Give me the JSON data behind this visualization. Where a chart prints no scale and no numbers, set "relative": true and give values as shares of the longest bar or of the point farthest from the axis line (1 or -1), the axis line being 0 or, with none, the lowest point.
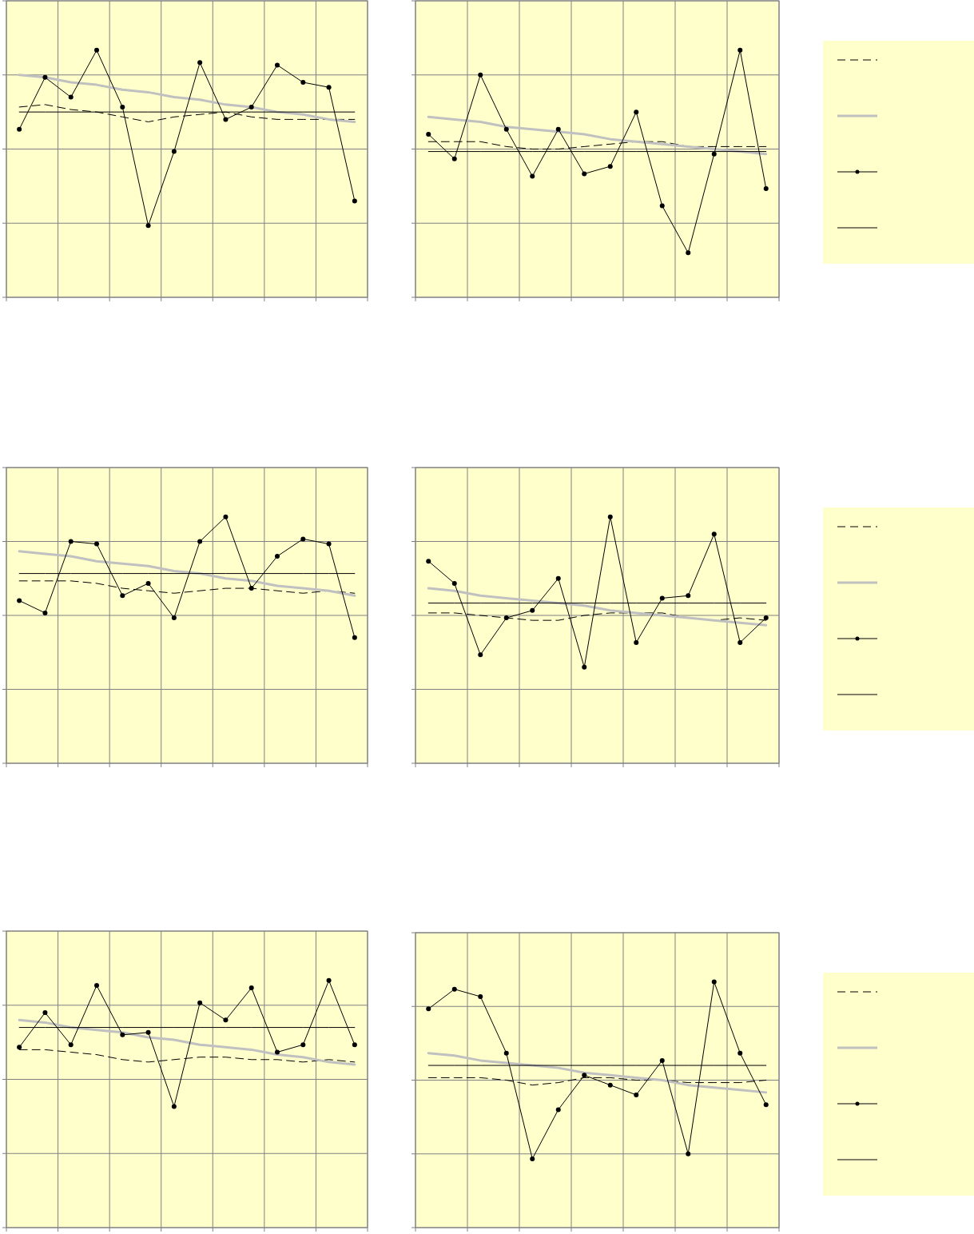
{
  "chart_data": [
    {
      "type": "line",
      "relative": true,
      "grid": true,
      "categories": [
        null,
        null,
        null,
        null,
        null,
        null,
        null,
        null,
        null,
        null,
        null,
        null,
        null,
        null
      ],
      "series": [
        {
          "color": "#000000",
          "line_style": "dashed",
          "values": [
            0.77,
            0.78,
            0.76,
            0.75,
            0.73,
            0.71,
            0.73,
            0.74,
            0.75,
            0.73,
            0.72,
            0.72,
            0.72,
            0.72
          ]
        },
        {
          "color": "#c0c0c0",
          "line_style": "solid",
          "values": [
            0.9,
            0.89,
            0.87,
            0.86,
            0.84,
            0.83,
            0.81,
            0.8,
            0.78,
            0.77,
            0.75,
            0.74,
            0.72,
            0.71
          ]
        },
        {
          "color": "#000000",
          "line_style": "solid",
          "marker": "circle",
          "values": [
            0.68,
            0.89,
            0.81,
            1,
            0.77,
            0.29,
            0.59,
            0.95,
            0.72,
            0.77,
            0.94,
            0.87,
            0.85,
            0.39
          ]
        },
        {
          "color": "#000000",
          "line_style": "solid",
          "values": [
            0.75,
            0.75,
            0.75,
            0.75,
            0.75,
            0.75,
            0.75,
            0.75,
            0.75,
            0.75,
            0.75,
            0.75,
            0.75,
            0.75
          ]
        }
      ]
    },
    {
      "type": "line",
      "relative": true,
      "grid": true,
      "categories": [
        null,
        null,
        null,
        null,
        null,
        null,
        null,
        null,
        null,
        null,
        null,
        null,
        null,
        null
      ],
      "series": [
        {
          "color": "#000000",
          "line_style": "dashed",
          "values": [
            0.63,
            0.63,
            0.63,
            0.61,
            0.6,
            0.6,
            0.61,
            0.62,
            0.63,
            0.63,
            0.61,
            0.61,
            0.61,
            0.61
          ]
        },
        {
          "color": "#c0c0c0",
          "line_style": "solid",
          "values": [
            0.73,
            0.72,
            0.71,
            0.69,
            0.68,
            0.67,
            0.66,
            0.64,
            0.63,
            0.62,
            0.61,
            0.6,
            0.59,
            0.58
          ]
        },
        {
          "color": "#000000",
          "line_style": "solid",
          "marker": "circle",
          "values": [
            0.66,
            0.56,
            0.9,
            0.68,
            0.49,
            0.68,
            0.5,
            0.53,
            0.75,
            0.37,
            0.18,
            0.58,
            1,
            0.44
          ]
        },
        {
          "color": "#000000",
          "line_style": "solid",
          "values": [
            0.59,
            0.59,
            0.59,
            0.59,
            0.59,
            0.59,
            0.59,
            0.59,
            0.59,
            0.59,
            0.59,
            0.59,
            0.59,
            0.59
          ]
        }
      ]
    },
    {
      "type": "line",
      "relative": true,
      "grid": true,
      "categories": [
        null,
        null,
        null,
        null,
        null,
        null,
        null,
        null,
        null,
        null,
        null,
        null,
        null,
        null
      ],
      "series": [
        {
          "color": "#000000",
          "line_style": "dashed",
          "values": [
            0.74,
            0.74,
            0.74,
            0.73,
            0.71,
            0.7,
            0.69,
            0.7,
            0.71,
            0.71,
            0.7,
            0.69,
            0.7,
            0.69
          ]
        },
        {
          "color": "#c0c0c0",
          "line_style": "solid",
          "values": [
            0.86,
            0.85,
            0.84,
            0.82,
            0.81,
            0.8,
            0.78,
            0.77,
            0.75,
            0.74,
            0.72,
            0.71,
            0.7,
            0.68
          ]
        },
        {
          "color": "#000000",
          "line_style": "solid",
          "marker": "circle",
          "values": [
            0.66,
            0.61,
            0.9,
            0.89,
            0.68,
            0.73,
            0.59,
            0.9,
            1,
            0.71,
            0.84,
            0.91,
            0.89,
            0.51
          ]
        },
        {
          "color": "#000000",
          "line_style": "solid",
          "values": [
            0.77,
            0.77,
            0.77,
            0.77,
            0.77,
            0.77,
            0.77,
            0.77,
            0.77,
            0.77,
            0.77,
            0.77,
            0.77,
            0.77
          ]
        }
      ]
    },
    {
      "type": "line",
      "relative": true,
      "grid": true,
      "categories": [
        null,
        null,
        null,
        null,
        null,
        null,
        null,
        null,
        null,
        null,
        null,
        null,
        null,
        null
      ],
      "series": [
        {
          "color": "#000000",
          "line_style": "dashed",
          "values": [
            0.61,
            0.61,
            0.6,
            0.59,
            0.58,
            0.58,
            0.6,
            0.61,
            0.61,
            0.61,
            0.59,
            0.58,
            0.59,
            0.58
          ]
        },
        {
          "color": "#c0c0c0",
          "line_style": "solid",
          "values": [
            0.71,
            0.7,
            0.68,
            0.67,
            0.66,
            0.65,
            0.64,
            0.62,
            0.61,
            0.6,
            0.59,
            0.58,
            0.57,
            0.56
          ]
        },
        {
          "color": "#000000",
          "line_style": "solid",
          "marker": "circle",
          "values": [
            0.82,
            0.73,
            0.44,
            0.59,
            0.62,
            0.75,
            0.39,
            1,
            0.49,
            0.67,
            0.68,
            0.93,
            0.49,
            0.59
          ]
        },
        {
          "color": "#000000",
          "line_style": "solid",
          "values": [
            0.65,
            0.65,
            0.65,
            0.65,
            0.65,
            0.65,
            0.65,
            0.65,
            0.65,
            0.65,
            0.65,
            0.65,
            0.65,
            0.65
          ]
        }
      ]
    },
    {
      "type": "line",
      "relative": true,
      "grid": true,
      "categories": [
        null,
        null,
        null,
        null,
        null,
        null,
        null,
        null,
        null,
        null,
        null,
        null,
        null,
        null
      ],
      "series": [
        {
          "color": "#000000",
          "line_style": "dashed",
          "values": [
            0.72,
            0.72,
            0.71,
            0.7,
            0.68,
            0.67,
            0.68,
            0.69,
            0.69,
            0.68,
            0.68,
            0.67,
            0.68,
            0.67
          ]
        },
        {
          "color": "#c0c0c0",
          "line_style": "solid",
          "values": [
            0.84,
            0.83,
            0.81,
            0.8,
            0.79,
            0.77,
            0.76,
            0.74,
            0.73,
            0.72,
            0.7,
            0.69,
            0.67,
            0.66
          ]
        },
        {
          "color": "#000000",
          "line_style": "solid",
          "marker": "circle",
          "values": [
            0.73,
            0.87,
            0.74,
            0.98,
            0.78,
            0.79,
            0.49,
            0.91,
            0.84,
            0.97,
            0.71,
            0.74,
            1,
            0.74
          ]
        },
        {
          "color": "#000000",
          "line_style": "solid",
          "values": [
            0.81,
            0.81,
            0.81,
            0.81,
            0.81,
            0.81,
            0.81,
            0.81,
            0.81,
            0.81,
            0.81,
            0.81,
            0.81,
            0.81
          ]
        }
      ]
    },
    {
      "type": "line",
      "relative": true,
      "grid": true,
      "categories": [
        null,
        null,
        null,
        null,
        null,
        null,
        null,
        null,
        null,
        null,
        null,
        null,
        null,
        null
      ],
      "series": [
        {
          "color": "#000000",
          "line_style": "dashed",
          "values": [
            0.61,
            0.61,
            0.61,
            0.6,
            0.58,
            0.59,
            0.61,
            0.61,
            0.6,
            0.6,
            0.59,
            0.59,
            0.59,
            0.6
          ]
        },
        {
          "color": "#c0c0c0",
          "line_style": "solid",
          "values": [
            0.71,
            0.7,
            0.68,
            0.67,
            0.66,
            0.65,
            0.63,
            0.62,
            0.61,
            0.6,
            0.58,
            0.57,
            0.56,
            0.55
          ]
        },
        {
          "color": "#000000",
          "line_style": "solid",
          "marker": "circle",
          "values": [
            0.89,
            0.97,
            0.94,
            0.71,
            0.28,
            0.48,
            0.62,
            0.58,
            0.54,
            0.68,
            0.3,
            1,
            0.71,
            0.5
          ]
        },
        {
          "color": "#000000",
          "line_style": "solid",
          "values": [
            0.66,
            0.66,
            0.66,
            0.66,
            0.66,
            0.66,
            0.66,
            0.66,
            0.66,
            0.66,
            0.66,
            0.66,
            0.66,
            0.66
          ]
        }
      ]
    }
  ]
}
